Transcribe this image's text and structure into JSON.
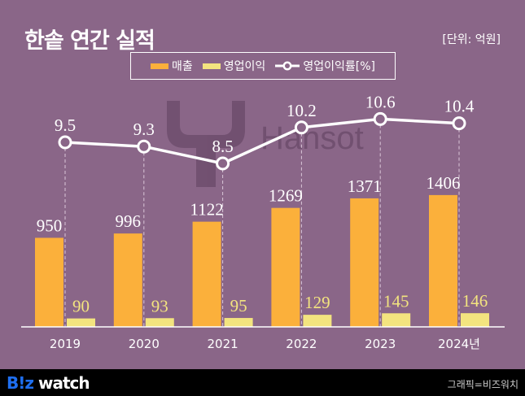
{
  "title": "한솥 연간 실적",
  "unit": "[단위: 억원]",
  "watermark": "Hansot",
  "footer": {
    "logo_b": "B!z",
    "logo_rest": " watch",
    "credit": "그래픽=비즈워치"
  },
  "colors": {
    "background": "#8a6688",
    "revenue": "#fbb03b",
    "profit": "#f3e47f",
    "line": "#ffffff"
  },
  "chart_data": {
    "type": "bar+line",
    "categories": [
      "2019",
      "2020",
      "2021",
      "2022",
      "2023",
      "2024년"
    ],
    "series": [
      {
        "name": "매출",
        "type": "bar",
        "values": [
          950,
          996,
          1122,
          1269,
          1371,
          1406
        ]
      },
      {
        "name": "영업이익",
        "type": "bar",
        "values": [
          90,
          93,
          95,
          129,
          145,
          146
        ]
      },
      {
        "name": "영업이익률[%]",
        "type": "line",
        "values": [
          9.5,
          9.3,
          8.5,
          10.2,
          10.6,
          10.4
        ]
      }
    ],
    "legend_position": "top-center",
    "grid": false
  }
}
